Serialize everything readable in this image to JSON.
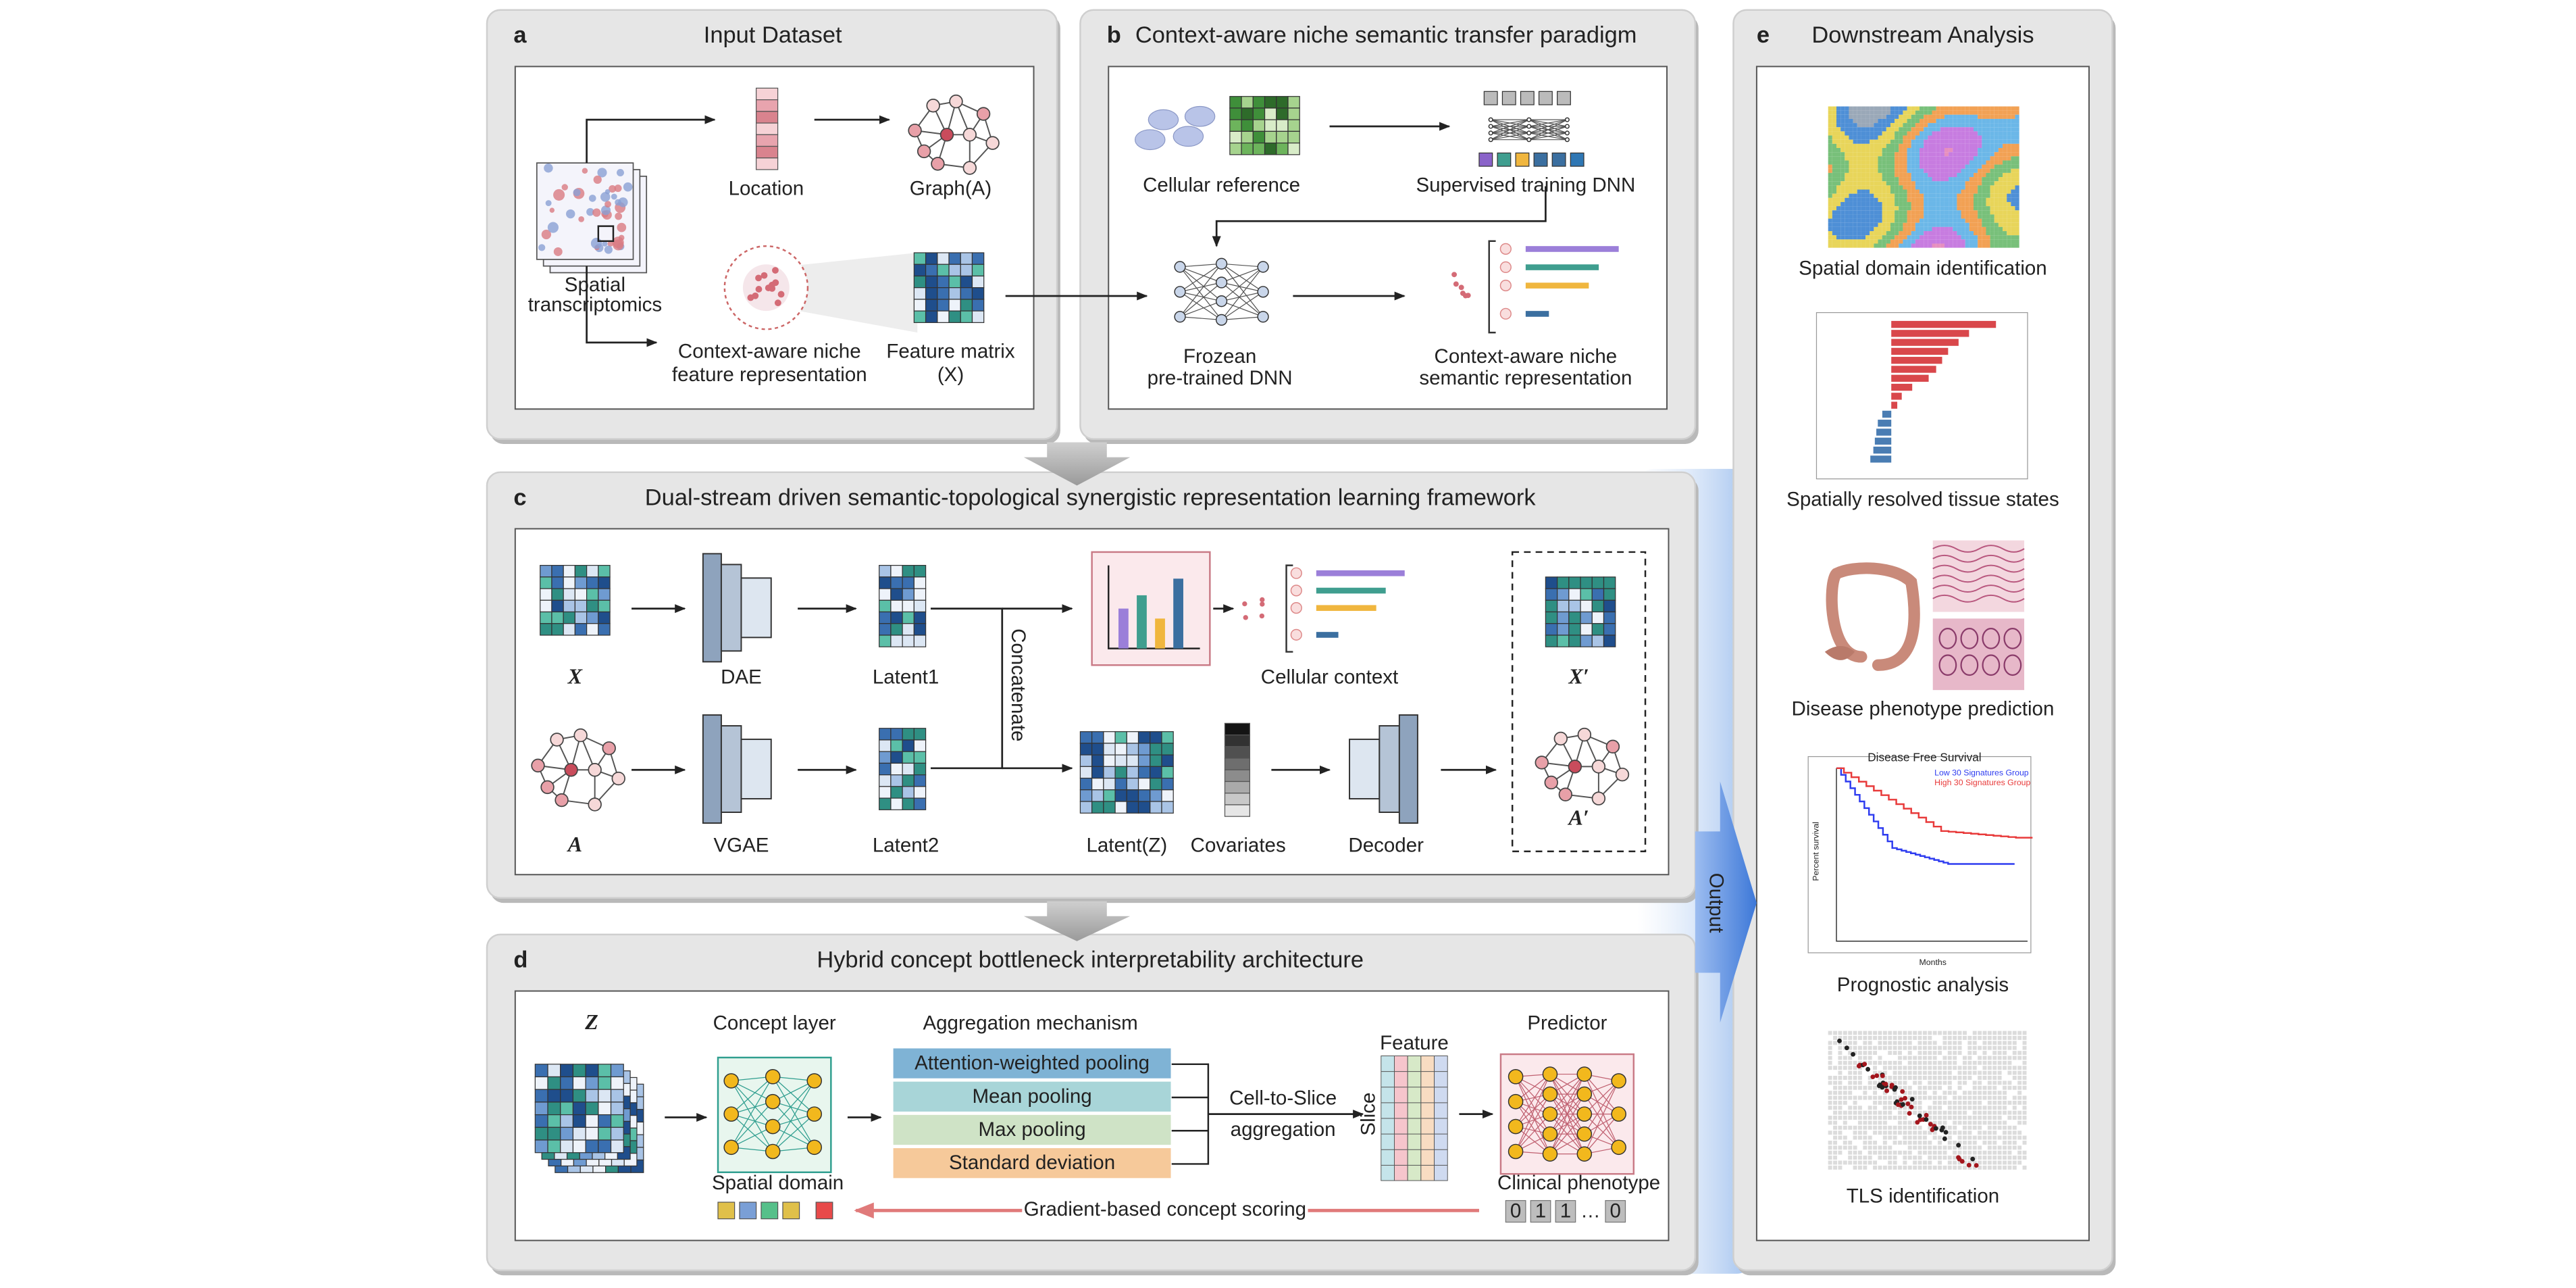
{
  "panel_a": {
    "label": "a",
    "title": "Input Dataset",
    "location": "Location",
    "graph": "Graph(A)",
    "spatial": [
      "Spatial",
      "transcriptomics"
    ],
    "niche": [
      "Context-aware niche",
      "feature representation"
    ],
    "feature_matrix": [
      "Feature matrix",
      "(X)"
    ]
  },
  "panel_b": {
    "label": "b",
    "title": "Context-aware niche semantic transfer paradigm",
    "cellular_reference": "Cellular reference",
    "supervised": "Supervised training DNN",
    "frozen": [
      "Frozean",
      "pre-trained DNN"
    ],
    "semantic": [
      "Context-aware niche",
      "semantic representation"
    ]
  },
  "panel_c": {
    "label": "c",
    "title": "Dual-stream driven semantic-topological synergistic representation learning framework",
    "x": "X",
    "dae": "DAE",
    "latent1": "Latent1",
    "a": "A",
    "vgae": "VGAE",
    "latent2": "Latent2",
    "concatenate": "Concatenate",
    "cellular_context": "Cellular context",
    "latent_z": "Latent(Z)",
    "covariates": "Covariates",
    "decoder": "Decoder",
    "x_prime": "X′",
    "a_prime": "A′"
  },
  "panel_d": {
    "label": "d",
    "title": "Hybrid concept bottleneck interpretability architecture",
    "z": "Z",
    "concept_layer": "Concept layer",
    "aggregation": "Aggregation mechanism",
    "poolings": [
      "Attention-weighted pooling",
      "Mean pooling",
      "Max pooling",
      "Standard deviation"
    ],
    "cell_to_slice": [
      "Cell-to-Slice",
      "aggregation"
    ],
    "feature": "Feature",
    "slice": "Slice",
    "predictor": "Predictor",
    "spatial_domain": "Spatial domain",
    "clinical_phenotype": "Clinical phenotype",
    "gradient": "Gradient-based concept scoring",
    "phenotype_codes": [
      "0",
      "1",
      "1",
      "…",
      "0"
    ]
  },
  "panel_e": {
    "label": "e",
    "title": "Downstream Analysis",
    "items": [
      "Spatial domain identification",
      "Spatially resolved tissue states",
      "Disease phenotype prediction",
      "Prognostic analysis",
      "TLS identification"
    ],
    "survival_title": "Disease Free Survival",
    "survival_x": "Months",
    "survival_y": "Percent survival",
    "survival_legend": [
      "Low 30 Signatures Group",
      "High 30 Signatures Group"
    ]
  },
  "output": "Output"
}
